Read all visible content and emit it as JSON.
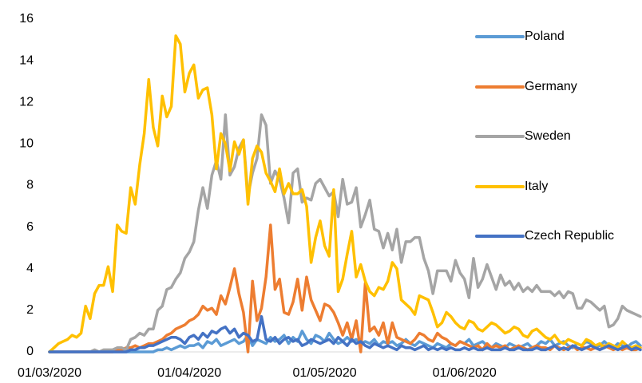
{
  "chart_data": {
    "type": "line",
    "categories": [
      "01/03/2020",
      null,
      null,
      null,
      null,
      null,
      null,
      null,
      null,
      null,
      null,
      null,
      null,
      null,
      null,
      null,
      null,
      null,
      null,
      null,
      null,
      null,
      null,
      null,
      null,
      null,
      null,
      null,
      null,
      null,
      null,
      "01/04/2020",
      null,
      null,
      null,
      null,
      null,
      null,
      null,
      null,
      null,
      null,
      null,
      null,
      null,
      null,
      null,
      null,
      null,
      null,
      null,
      null,
      null,
      null,
      null,
      null,
      null,
      null,
      null,
      null,
      null,
      "01/05/2020",
      null,
      null,
      null,
      null,
      null,
      null,
      null,
      null,
      null,
      null,
      null,
      null,
      null,
      null,
      null,
      null,
      null,
      null,
      null,
      null,
      null,
      null,
      null,
      null,
      null,
      null,
      null,
      null,
      null,
      null,
      "01/06/2020",
      null,
      null,
      null,
      null,
      null,
      null,
      null,
      null,
      null,
      null,
      null,
      null,
      null,
      null,
      null,
      null,
      null,
      null,
      null,
      null,
      null,
      null,
      null,
      null,
      null,
      null,
      null,
      null,
      null,
      null,
      null,
      null,
      null,
      null,
      null,
      null,
      null,
      null,
      null
    ],
    "series": [
      {
        "name": "Poland",
        "color": "#5b9bd5",
        "values": [
          0,
          0,
          0,
          0,
          0,
          0,
          0,
          0,
          0,
          0,
          0,
          0,
          0,
          0,
          0,
          0,
          0,
          0,
          0,
          0,
          0,
          0,
          0,
          0,
          0.1,
          0.1,
          0.2,
          0.1,
          0.2,
          0.3,
          0.2,
          0.3,
          0.3,
          0.4,
          0.2,
          0.5,
          0.4,
          0.6,
          0.3,
          0.4,
          0.5,
          0.6,
          0.4,
          0.5,
          0.8,
          0.3,
          0.6,
          0.5,
          0.4,
          0.7,
          0.5,
          0.6,
          0.8,
          0.4,
          0.7,
          0.5,
          1.0,
          0.6,
          0.4,
          0.8,
          0.7,
          0.5,
          0.9,
          0.6,
          0.4,
          0.5,
          0.7,
          0.5,
          0.6,
          0.4,
          0.5,
          0.4,
          0.6,
          0.3,
          0.5,
          0.4,
          0.5,
          0.3,
          0.4,
          0.6,
          0.4,
          0.3,
          0.5,
          0.4,
          0.3,
          0.2,
          0.4,
          0.3,
          0.2,
          0.4,
          0.3,
          0.5,
          0.4,
          0.6,
          0.3,
          0.4,
          0.5,
          0.3,
          0.2,
          0.4,
          0.3,
          0.2,
          0.4,
          0.3,
          0.2,
          0.3,
          0.4,
          0.2,
          0.3,
          0.5,
          0.4,
          0.6,
          0.3,
          0.4,
          0.5,
          0.3,
          0.2,
          0.4,
          0.3,
          0.5,
          0.4,
          0.2,
          0.3,
          0.5,
          0.3,
          0.2,
          0.4,
          0.3,
          0.2,
          0.4,
          0.5,
          0.3
        ]
      },
      {
        "name": "Germany",
        "color": "#ed7d31",
        "values": [
          0,
          0,
          0,
          0,
          0,
          0,
          0,
          0,
          0,
          0,
          0,
          0,
          0,
          0,
          0,
          0.1,
          0.1,
          0.2,
          0.2,
          0.3,
          0.2,
          0.3,
          0.4,
          0.4,
          0.5,
          0.6,
          0.8,
          0.9,
          1.1,
          1.2,
          1.3,
          1.5,
          1.6,
          1.8,
          2.2,
          2.0,
          2.1,
          1.8,
          2.7,
          2.3,
          3.1,
          4.0,
          2.8,
          1.9,
          0,
          3.4,
          1.5,
          2.1,
          3.6,
          6.1,
          3.0,
          3.5,
          1.9,
          1.8,
          2.4,
          3.5,
          2.0,
          3.6,
          2.5,
          2.0,
          1.5,
          2.3,
          2.2,
          1.9,
          1.4,
          0.8,
          1.4,
          0.6,
          1.5,
          0,
          3.3,
          1.0,
          1.2,
          0.8,
          1.4,
          0.4,
          1.4,
          0.7,
          0.6,
          0.5,
          0.4,
          0.6,
          0.9,
          0.8,
          0.6,
          0.5,
          0.9,
          0.7,
          0.6,
          0.4,
          0.3,
          0.5,
          0.4,
          0.3,
          0.2,
          0.3,
          0.1,
          0.4,
          0.2,
          0.3,
          0.2,
          0.3,
          0.1,
          0.2,
          0.3,
          0.2,
          0.1,
          0.2,
          0.3,
          0.2,
          0.2,
          0.1,
          0.3,
          0.2,
          0.1,
          0.2,
          0.3,
          0.1,
          0.2,
          0.2,
          0.1,
          0.2,
          0.1,
          0.3,
          0.2,
          0.1,
          0.2,
          0.1,
          0.2,
          0.1,
          0.1,
          0.2
        ]
      },
      {
        "name": "Sweden",
        "color": "#a5a5a5",
        "values": [
          0,
          0,
          0,
          0,
          0,
          0,
          0,
          0,
          0,
          0,
          0.1,
          0,
          0.1,
          0.1,
          0.1,
          0.2,
          0.2,
          0.1,
          0.6,
          0.7,
          0.9,
          0.8,
          1.1,
          1.1,
          2.0,
          2.2,
          3.0,
          3.1,
          3.5,
          3.8,
          4.5,
          4.8,
          5.3,
          6.8,
          7.9,
          6.9,
          8.5,
          9.2,
          8.3,
          11.4,
          8.5,
          8.9,
          9.8,
          10.2,
          7.5,
          8.6,
          9.3,
          11.4,
          10.9,
          8.1,
          8.7,
          8.3,
          7.4,
          6.2,
          8.6,
          8.8,
          7.2,
          7.4,
          7.3,
          8.1,
          8.3,
          7.9,
          7.5,
          7.7,
          6.5,
          8.3,
          7.1,
          7.2,
          7.9,
          6.0,
          6.6,
          7.3,
          5.9,
          5.8,
          5.0,
          5.7,
          4.9,
          5.9,
          4.3,
          5.3,
          5.3,
          5.5,
          5.5,
          4.5,
          3.9,
          2.8,
          3.9,
          3.9,
          3.9,
          3.4,
          4.4,
          3.8,
          3.5,
          2.6,
          4.5,
          3.1,
          3.5,
          4.2,
          3.6,
          3.0,
          3.7,
          3.2,
          3.4,
          3.0,
          3.3,
          2.9,
          3.1,
          2.9,
          3.2,
          2.9,
          2.9,
          2.9,
          2.7,
          2.9,
          2.6,
          2.9,
          2.8,
          2.1,
          2.1,
          2.5,
          2.4,
          2.2,
          2.0,
          2.2,
          1.2,
          1.3,
          1.6,
          2.2,
          2.0,
          1.9,
          1.8,
          1.7
        ]
      },
      {
        "name": "Italy",
        "color": "#ffc000",
        "values": [
          0,
          0.2,
          0.4,
          0.5,
          0.6,
          0.8,
          0.7,
          0.9,
          2.2,
          1.6,
          2.8,
          3.2,
          3.2,
          4.1,
          2.9,
          6.1,
          5.8,
          5.7,
          7.9,
          7.1,
          9.0,
          10.5,
          13.1,
          10.8,
          9.9,
          12.3,
          11.3,
          11.8,
          15.2,
          14.8,
          12.5,
          13.4,
          13.8,
          12.2,
          12.6,
          12.7,
          11.4,
          8.8,
          10.5,
          10.0,
          8.7,
          10.1,
          9.5,
          10.2,
          7.1,
          9.3,
          9.9,
          9.6,
          8.6,
          8.2,
          7.7,
          8.8,
          7.6,
          8.1,
          7.6,
          7.6,
          7.8,
          7.0,
          4.3,
          5.5,
          6.3,
          5.1,
          4.6,
          7.8,
          2.9,
          3.5,
          4.7,
          5.8,
          3.6,
          4.2,
          3.4,
          2.9,
          2.7,
          3.1,
          3.0,
          3.4,
          4.3,
          4.0,
          2.5,
          2.3,
          2.1,
          1.8,
          2.7,
          2.6,
          2.5,
          1.9,
          1.2,
          1.4,
          1.9,
          1.7,
          1.4,
          1.2,
          1.1,
          1.5,
          1.4,
          1.1,
          1.0,
          1.2,
          1.4,
          1.3,
          1.1,
          0.9,
          1.0,
          1.2,
          1.1,
          0.8,
          0.7,
          1.0,
          1.1,
          0.9,
          0.7,
          0.6,
          0.8,
          0.5,
          0.4,
          0.6,
          0.5,
          0.4,
          0.3,
          0.6,
          0.5,
          0.3,
          0.4,
          0.2,
          0.4,
          0.3,
          0.2,
          0.5,
          0.3,
          0.2,
          0.3,
          0.2
        ]
      },
      {
        "name": "Czech Republic",
        "color": "#4472c4",
        "values": [
          0,
          0,
          0,
          0,
          0,
          0,
          0,
          0,
          0,
          0,
          0,
          0,
          0,
          0,
          0,
          0,
          0,
          0,
          0.1,
          0.1,
          0.2,
          0.2,
          0.3,
          0.3,
          0.4,
          0.5,
          0.6,
          0.7,
          0.7,
          0.6,
          0.4,
          0.7,
          0.8,
          0.6,
          0.9,
          0.7,
          1.0,
          0.9,
          1.1,
          1.2,
          0.9,
          1.1,
          0.7,
          0.9,
          0.8,
          0.5,
          0.6,
          1.7,
          0.6,
          0.5,
          0.7,
          0.4,
          0.6,
          0.7,
          0.5,
          0.6,
          0.3,
          0.4,
          0.6,
          0.5,
          0.4,
          0.5,
          0.6,
          0.4,
          0.7,
          0.5,
          0.3,
          0.6,
          0.4,
          0.5,
          0.3,
          0.2,
          0.4,
          0.3,
          0.2,
          0.3,
          0.2,
          0.1,
          0.3,
          0.2,
          0.2,
          0.1,
          0.2,
          0.3,
          0.1,
          0.2,
          0.1,
          0.2,
          0.1,
          0.2,
          0.1,
          0.1,
          0.2,
          0.1,
          0.2,
          0.1,
          0.1,
          0.2,
          0.1,
          0.1,
          0.1,
          0.2,
          0.1,
          0.1,
          0.2,
          0.1,
          0.1,
          0.1,
          0.2,
          0.1,
          0.1,
          0.2,
          0.3,
          0.1,
          0.2,
          0.1,
          0.3,
          0.2,
          0.1,
          0.2,
          0.3,
          0.2,
          0.1,
          0.2,
          0.3,
          0.2,
          0.1,
          0.2,
          0.3,
          0.1,
          0.2,
          0.1
        ]
      }
    ],
    "ylim": [
      0,
      16
    ],
    "yticks": [
      0,
      2,
      4,
      6,
      8,
      10,
      12,
      14,
      16
    ],
    "grid": false,
    "legend": "right"
  }
}
